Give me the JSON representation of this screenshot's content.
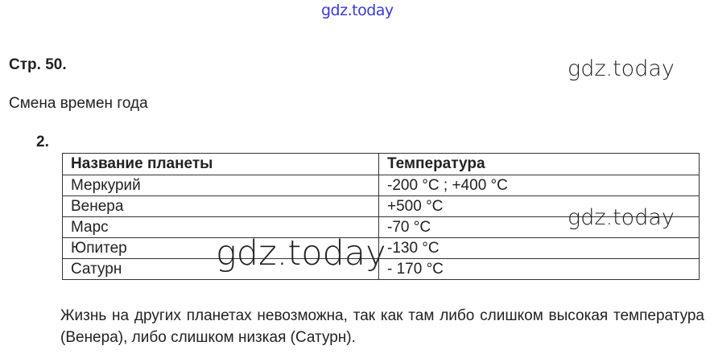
{
  "watermarks": [
    "gdz.today",
    "gdz.today",
    "gdz.today",
    "gdz.today"
  ],
  "page": {
    "heading": "Стр. 50.",
    "subtitle": "Смена времен года",
    "task_number": "2."
  },
  "table": {
    "headers": [
      "Название планеты",
      "Температура"
    ],
    "rows": [
      [
        "Меркурий",
        "-200 °C ; +400 °C"
      ],
      [
        "Венера",
        "+500 °C"
      ],
      [
        "Марс",
        "-70 °C"
      ],
      [
        "Юпитер",
        "-130 °C"
      ],
      [
        "Сатурн",
        "- 170 °C"
      ]
    ]
  },
  "conclusion": "Жизнь на других планетах невозможна, так как там либо слишком высокая температура (Венера), либо слишком низкая (Сатурн)."
}
